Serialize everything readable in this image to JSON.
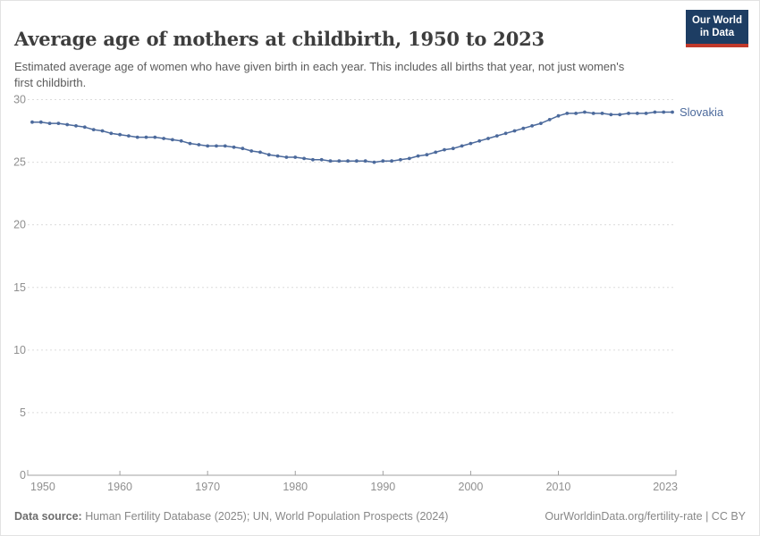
{
  "header": {
    "title": "Average age of mothers at childbirth, 1950 to 2023",
    "subtitle": "Estimated average age of women who have given birth in each year. This includes all births that year, not just women's first childbirth.",
    "logo": {
      "line1": "Our World",
      "line2": "in Data",
      "bg_color": "#1d3d63",
      "accent_color": "#c0392b"
    }
  },
  "chart_data": {
    "type": "line",
    "title": "Average age of mothers at childbirth, 1950 to 2023",
    "xlabel": "",
    "ylabel": "",
    "xlim": [
      1950,
      2023
    ],
    "ylim": [
      0,
      30
    ],
    "x_ticks": [
      1950,
      1960,
      1970,
      1980,
      1990,
      2000,
      2010,
      2023
    ],
    "y_ticks": [
      0,
      5,
      10,
      15,
      20,
      25,
      30
    ],
    "grid": "horizontal-dashed",
    "legend_position": "end-of-line-label",
    "series": [
      {
        "name": "Slovakia",
        "color": "#4c6a9c",
        "x": [
          1950,
          1951,
          1952,
          1953,
          1954,
          1955,
          1956,
          1957,
          1958,
          1959,
          1960,
          1961,
          1962,
          1963,
          1964,
          1965,
          1966,
          1967,
          1968,
          1969,
          1970,
          1971,
          1972,
          1973,
          1974,
          1975,
          1976,
          1977,
          1978,
          1979,
          1980,
          1981,
          1982,
          1983,
          1984,
          1985,
          1986,
          1987,
          1988,
          1989,
          1990,
          1991,
          1992,
          1993,
          1994,
          1995,
          1996,
          1997,
          1998,
          1999,
          2000,
          2001,
          2002,
          2003,
          2004,
          2005,
          2006,
          2007,
          2008,
          2009,
          2010,
          2011,
          2012,
          2013,
          2014,
          2015,
          2016,
          2017,
          2018,
          2019,
          2020,
          2021,
          2022,
          2023
        ],
        "values": [
          28.2,
          28.2,
          28.1,
          28.1,
          28.0,
          27.9,
          27.8,
          27.6,
          27.5,
          27.3,
          27.2,
          27.1,
          27.0,
          27.0,
          27.0,
          26.9,
          26.8,
          26.7,
          26.5,
          26.4,
          26.3,
          26.3,
          26.3,
          26.2,
          26.1,
          25.9,
          25.8,
          25.6,
          25.5,
          25.4,
          25.4,
          25.3,
          25.2,
          25.2,
          25.1,
          25.1,
          25.1,
          25.1,
          25.1,
          25.0,
          25.1,
          25.1,
          25.2,
          25.3,
          25.5,
          25.6,
          25.8,
          26.0,
          26.1,
          26.3,
          26.5,
          26.7,
          26.9,
          27.1,
          27.3,
          27.5,
          27.7,
          27.9,
          28.1,
          28.4,
          28.7,
          28.9,
          28.9,
          29.0,
          28.9,
          28.9,
          28.8,
          28.8,
          28.9,
          28.9,
          28.9,
          29.0,
          29.0,
          29.0
        ]
      }
    ]
  },
  "footer": {
    "source_label": "Data source:",
    "source_text": " Human Fertility Database (2025); UN, World Population Prospects (2024)",
    "link_text": "OurWorldinData.org/fertility-rate | CC BY"
  }
}
